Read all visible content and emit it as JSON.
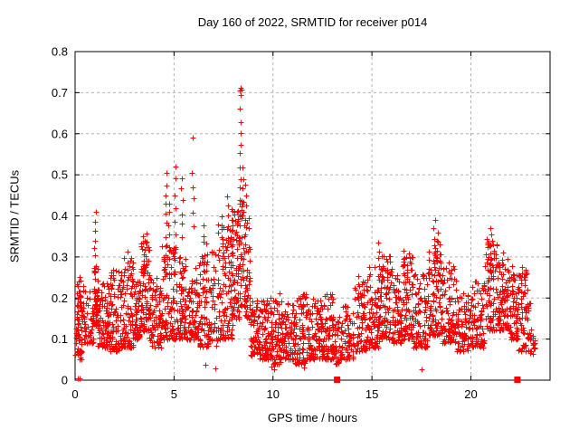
{
  "page": {
    "background": "#ffffff"
  },
  "chart_data": {
    "type": "scatter",
    "title": "Day 160 of 2022, SRMTID for receiver p014",
    "xlabel": "GPS time / hours",
    "ylabel": "SRMTID / TECUs",
    "xlim": [
      0,
      24
    ],
    "ylim": [
      0,
      0.8
    ],
    "xticks": [
      0,
      5,
      10,
      15,
      20
    ],
    "xtick_labels": [
      "0",
      "5",
      "10",
      "15",
      "20"
    ],
    "yticks": [
      0,
      0.1,
      0.2,
      0.3,
      0.4,
      0.5,
      0.6,
      0.7,
      0.8
    ],
    "ytick_labels": [
      "0",
      "0.1",
      "0.2",
      "0.3",
      "0.4",
      "0.5",
      "0.6",
      "0.7",
      "0.8"
    ],
    "grid": {
      "show": true,
      "color": "#b0b0b0",
      "style": "dashed"
    },
    "marker": {
      "shape": "plus",
      "color": "#ff0000",
      "size": 7
    },
    "series_name": "SRMTID",
    "seed": 1234567,
    "point_bands": [
      [
        0.02,
        0.35,
        0.05,
        0.27,
        70,
        1.4
      ],
      [
        0.35,
        0.95,
        0.09,
        0.23,
        55,
        1.6
      ],
      [
        0.95,
        1.15,
        0.13,
        0.28,
        40,
        1.3
      ],
      [
        1.15,
        1.75,
        0.08,
        0.24,
        90,
        1.7
      ],
      [
        1.75,
        2.35,
        0.07,
        0.27,
        90,
        1.7
      ],
      [
        2.35,
        2.95,
        0.08,
        0.3,
        80,
        1.9
      ],
      [
        2.95,
        3.3,
        0.1,
        0.25,
        55,
        1.6
      ],
      [
        3.3,
        3.75,
        0.12,
        0.34,
        75,
        1.7
      ],
      [
        3.75,
        4.35,
        0.08,
        0.25,
        80,
        1.7
      ],
      [
        4.35,
        5.1,
        0.1,
        0.33,
        95,
        1.8
      ],
      [
        5.1,
        5.6,
        0.1,
        0.3,
        70,
        1.7
      ],
      [
        5.6,
        6.25,
        0.1,
        0.3,
        80,
        1.7
      ],
      [
        6.25,
        7.2,
        0.08,
        0.32,
        110,
        1.8
      ],
      [
        7.2,
        7.95,
        0.1,
        0.38,
        110,
        1.6
      ],
      [
        7.95,
        8.3,
        0.15,
        0.42,
        60,
        1.4
      ],
      [
        8.3,
        8.55,
        0.18,
        0.45,
        40,
        1.3
      ],
      [
        8.55,
        8.85,
        0.15,
        0.4,
        45,
        1.5
      ],
      [
        8.85,
        9.3,
        0.06,
        0.2,
        60,
        1.6
      ],
      [
        9.3,
        9.8,
        0.05,
        0.2,
        70,
        1.6
      ],
      [
        9.8,
        10.45,
        0.04,
        0.21,
        85,
        1.6
      ],
      [
        10.45,
        11.1,
        0.05,
        0.19,
        85,
        1.6
      ],
      [
        11.1,
        11.8,
        0.04,
        0.21,
        90,
        1.6
      ],
      [
        11.8,
        12.5,
        0.05,
        0.2,
        90,
        1.6
      ],
      [
        12.5,
        13.1,
        0.05,
        0.21,
        80,
        1.6
      ],
      [
        13.1,
        13.35,
        0.04,
        0.15,
        25,
        1.5
      ],
      [
        13.35,
        14.1,
        0.05,
        0.18,
        70,
        1.6
      ],
      [
        14.1,
        14.75,
        0.07,
        0.24,
        75,
        1.6
      ],
      [
        14.75,
        15.35,
        0.08,
        0.28,
        75,
        1.7
      ],
      [
        15.35,
        16.0,
        0.1,
        0.31,
        80,
        1.7
      ],
      [
        16.0,
        16.55,
        0.09,
        0.26,
        70,
        1.6
      ],
      [
        16.55,
        17.1,
        0.1,
        0.31,
        75,
        1.7
      ],
      [
        17.1,
        17.8,
        0.08,
        0.26,
        85,
        1.6
      ],
      [
        17.8,
        18.55,
        0.11,
        0.34,
        95,
        1.7
      ],
      [
        18.55,
        19.3,
        0.09,
        0.28,
        85,
        1.6
      ],
      [
        19.3,
        20.0,
        0.07,
        0.22,
        80,
        1.6
      ],
      [
        20.0,
        20.7,
        0.08,
        0.24,
        80,
        1.6
      ],
      [
        20.7,
        21.45,
        0.12,
        0.34,
        90,
        1.6
      ],
      [
        21.45,
        21.95,
        0.12,
        0.3,
        65,
        1.6
      ],
      [
        21.95,
        22.4,
        0.1,
        0.26,
        55,
        1.6
      ],
      [
        22.4,
        23.0,
        0.07,
        0.27,
        65,
        1.6
      ],
      [
        23.0,
        23.25,
        0.06,
        0.13,
        18,
        1.4
      ]
    ],
    "point_strings": [
      [
        1.02,
        0.28,
        0.41,
        7
      ],
      [
        2.62,
        0.22,
        0.31,
        5
      ],
      [
        2.85,
        0.2,
        0.3,
        5
      ],
      [
        3.45,
        0.25,
        0.35,
        6
      ],
      [
        3.58,
        0.28,
        0.36,
        5
      ],
      [
        4.6,
        0.33,
        0.5,
        8
      ],
      [
        4.75,
        0.3,
        0.43,
        6
      ],
      [
        5.05,
        0.32,
        0.52,
        7
      ],
      [
        5.4,
        0.35,
        0.49,
        6
      ],
      [
        5.95,
        0.38,
        0.5,
        5
      ],
      [
        6.5,
        0.26,
        0.38,
        6
      ],
      [
        6.65,
        0.24,
        0.33,
        5
      ],
      [
        7.45,
        0.28,
        0.4,
        6
      ],
      [
        7.7,
        0.3,
        0.45,
        7
      ],
      [
        7.9,
        0.28,
        0.42,
        6
      ],
      [
        8.15,
        0.3,
        0.38,
        5
      ],
      [
        8.35,
        0.44,
        0.66,
        9
      ],
      [
        8.5,
        0.38,
        0.52,
        6
      ],
      [
        8.62,
        0.33,
        0.48,
        6
      ],
      [
        10.3,
        0.14,
        0.21,
        4
      ],
      [
        12.4,
        0.14,
        0.2,
        4
      ],
      [
        14.35,
        0.16,
        0.25,
        5
      ],
      [
        15.35,
        0.22,
        0.33,
        7
      ],
      [
        15.5,
        0.2,
        0.3,
        5
      ],
      [
        15.75,
        0.2,
        0.29,
        5
      ],
      [
        16.6,
        0.22,
        0.32,
        6
      ],
      [
        16.75,
        0.2,
        0.3,
        5
      ],
      [
        18.15,
        0.26,
        0.39,
        7
      ],
      [
        18.3,
        0.24,
        0.36,
        6
      ],
      [
        18.45,
        0.22,
        0.33,
        5
      ],
      [
        18.9,
        0.2,
        0.29,
        5
      ],
      [
        20.85,
        0.22,
        0.35,
        6
      ],
      [
        21.0,
        0.25,
        0.37,
        7
      ],
      [
        21.15,
        0.2,
        0.33,
        6
      ],
      [
        21.6,
        0.2,
        0.31,
        5
      ],
      [
        22.1,
        0.16,
        0.28,
        6
      ],
      [
        22.55,
        0.14,
        0.27,
        6
      ],
      [
        22.7,
        0.12,
        0.24,
        5
      ]
    ],
    "outlier_points": [
      [
        8.32,
        0.705
      ],
      [
        8.36,
        0.712
      ],
      [
        8.4,
        0.708
      ],
      [
        8.35,
        0.695
      ],
      [
        5.95,
        0.59
      ],
      [
        0.15,
        0.004
      ],
      [
        0.21,
        0.004
      ],
      [
        6.6,
        0.037
      ],
      [
        7.1,
        0.029
      ],
      [
        9.9,
        0.033
      ],
      [
        10.05,
        0.027
      ],
      [
        11.55,
        0.03
      ],
      [
        17.5,
        0.026
      ]
    ],
    "square_markers": {
      "shape": "filled-square",
      "color": "#ff0000",
      "points": [
        [
          13.24,
          0
        ],
        [
          22.35,
          0
        ]
      ]
    }
  }
}
